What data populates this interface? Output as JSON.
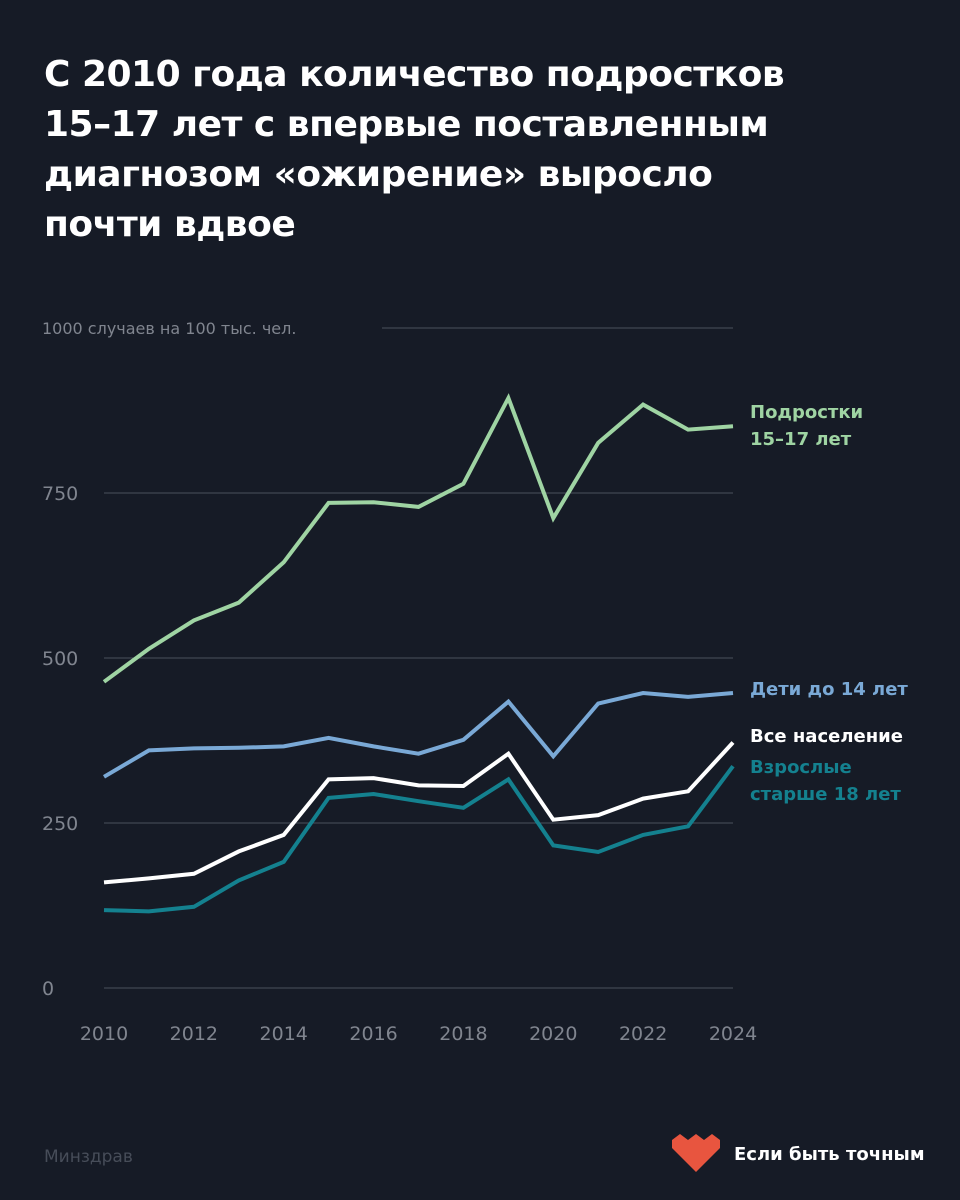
{
  "title_lines": [
    "С 2010 года количество подростков",
    "15–17 лет с впервые поставленным",
    "диагнозом «ожирение» выросло",
    "почти вдвое"
  ],
  "source": "Минздрав",
  "brand": {
    "name": "Если быть точным",
    "logo_color": "#e8553f"
  },
  "chart_data": {
    "type": "line",
    "ylabel": "1000 случаев на 100 тыс. чел.",
    "ylim": [
      0,
      1000
    ],
    "yticks": [
      0,
      250,
      500,
      750
    ],
    "x": [
      2010,
      2011,
      2012,
      2013,
      2014,
      2015,
      2016,
      2017,
      2018,
      2019,
      2020,
      2021,
      2022,
      2023,
      2024
    ],
    "xtick_labels": [
      "2010",
      "2012",
      "2014",
      "2016",
      "2018",
      "2020",
      "2022",
      "2024"
    ],
    "grid": true,
    "series": [
      {
        "name": "Подростки 15–17 лет",
        "label_lines": [
          "Подростки",
          "15–17 лет"
        ],
        "color": "#9fd4a3",
        "values": [
          464,
          514,
          557,
          584,
          645,
          735,
          736,
          729,
          764,
          894,
          712,
          826,
          884,
          846,
          851
        ]
      },
      {
        "name": "Дети до 14 лет",
        "label_lines": [
          "Дети до 14 лет"
        ],
        "color": "#7aa9d6",
        "values": [
          320,
          360,
          363,
          364,
          366,
          379,
          366,
          355,
          376,
          434,
          351,
          431,
          447,
          441,
          447
        ]
      },
      {
        "name": "Все население",
        "label_lines": [
          "Все население"
        ],
        "color": "#ffffff",
        "values": [
          160,
          166,
          173,
          207,
          232,
          316,
          318,
          307,
          306,
          355,
          255,
          262,
          287,
          298,
          372
        ]
      },
      {
        "name": "Взрослые старше 18 лет",
        "label_lines": [
          "Взрослые",
          "старше 18 лет"
        ],
        "color": "#14818f",
        "values": [
          118,
          116,
          123,
          163,
          191,
          288,
          294,
          283,
          273,
          316,
          216,
          206,
          232,
          245,
          336
        ]
      }
    ]
  }
}
